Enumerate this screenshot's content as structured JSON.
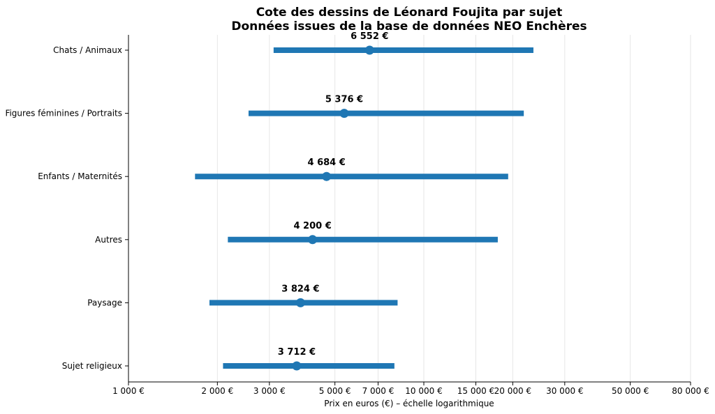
{
  "chart_data": {
    "type": "range-dot",
    "title": "Cote des dessins de Léonard Foujita par sujet",
    "subtitle": "Données issues de la base de données NEO Enchères",
    "xlabel": "Prix en euros (€) – échelle logarithmique",
    "ylabel": "",
    "xscale": "log",
    "xlim": [
      1000,
      80000
    ],
    "grid": "x",
    "x_ticks": [
      {
        "value": 1000,
        "label": "1 000 €"
      },
      {
        "value": 2000,
        "label": "2 000 €"
      },
      {
        "value": 3000,
        "label": "3 000 €"
      },
      {
        "value": 5000,
        "label": "5 000 €"
      },
      {
        "value": 7000,
        "label": "7 000 €"
      },
      {
        "value": 10000,
        "label": "10 000 €"
      },
      {
        "value": 15000,
        "label": "15 000 €"
      },
      {
        "value": 20000,
        "label": "20 000 €"
      },
      {
        "value": 30000,
        "label": "30 000 €"
      },
      {
        "value": 50000,
        "label": "50 000 €"
      },
      {
        "value": 80000,
        "label": "80 000 €"
      }
    ],
    "categories": [
      {
        "name": "Chats / Animaux",
        "min": 3100,
        "max": 23500,
        "median": 6552,
        "label": "6 552 €"
      },
      {
        "name": "Figures féminines / Portraits",
        "min": 2550,
        "max": 21800,
        "median": 5376,
        "label": "5 376 €"
      },
      {
        "name": "Enfants / Maternités",
        "min": 1680,
        "max": 19300,
        "median": 4684,
        "label": "4 684 €"
      },
      {
        "name": "Autres",
        "min": 2170,
        "max": 17800,
        "median": 4200,
        "label": "4 200 €"
      },
      {
        "name": "Paysage",
        "min": 1880,
        "max": 8150,
        "median": 3824,
        "label": "3 824 €"
      },
      {
        "name": "Sujet religieux",
        "min": 2090,
        "max": 7950,
        "median": 3712,
        "label": "3 712 €"
      }
    ],
    "colors": {
      "range": "#1f77b4",
      "median": "#1f77b4",
      "grid": "#e6e6e6",
      "axis": "#000000"
    }
  }
}
